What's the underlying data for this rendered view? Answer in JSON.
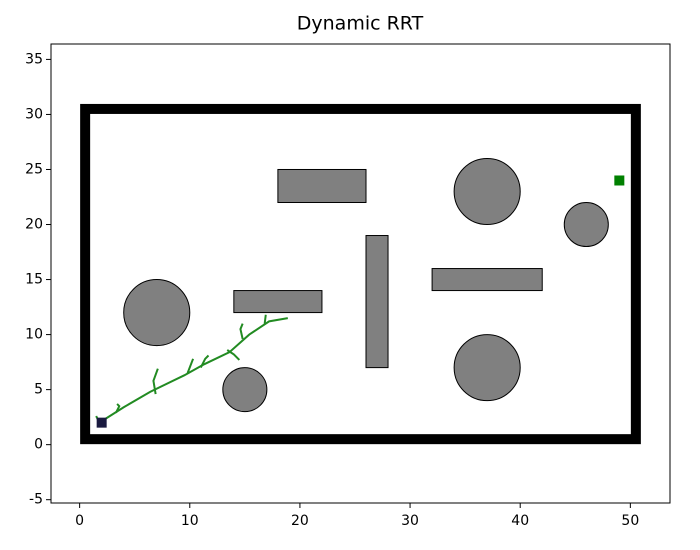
{
  "chart_data": {
    "type": "rrt-map",
    "title": "Dynamic RRT",
    "xlim": [
      -2.6,
      53.6
    ],
    "ylim": [
      -5.3,
      36.4
    ],
    "xticks": [
      0,
      10,
      20,
      30,
      40,
      50
    ],
    "yticks": [
      -5,
      0,
      5,
      10,
      15,
      20,
      25,
      30,
      35
    ],
    "walls": {
      "x": 0.5,
      "y": 0.5,
      "width": 50,
      "height": 30,
      "color": "#000000"
    },
    "obstacle_color": "#808080",
    "rectangles": [
      {
        "x": 18,
        "y": 22,
        "width": 8,
        "height": 3
      },
      {
        "x": 14,
        "y": 12,
        "width": 8,
        "height": 2
      },
      {
        "x": 26,
        "y": 7,
        "width": 2,
        "height": 12
      },
      {
        "x": 32,
        "y": 14,
        "width": 10,
        "height": 2
      }
    ],
    "circles": [
      {
        "x": 7,
        "y": 12,
        "r": 3
      },
      {
        "x": 15,
        "y": 5,
        "r": 2
      },
      {
        "x": 37,
        "y": 23,
        "r": 3
      },
      {
        "x": 37,
        "y": 7,
        "r": 3
      },
      {
        "x": 46,
        "y": 20,
        "r": 2
      }
    ],
    "tree_color": "#228b22",
    "tree": [
      {
        "x": [
          1.8,
          4,
          6.4,
          9.5,
          11.3,
          13.6,
          15.4,
          17.2,
          18.9
        ],
        "y": [
          2,
          3.4,
          4.8,
          6.3,
          7.3,
          8.4,
          10,
          11.2,
          11.5
        ]
      },
      {
        "x": [
          6.9,
          6.7,
          7.1
        ],
        "y": [
          4.6,
          5.8,
          6.9
        ]
      },
      {
        "x": [
          11,
          11.4,
          11.7
        ],
        "y": [
          7,
          7.8,
          8.1
        ]
      },
      {
        "x": [
          13.4,
          14,
          14.5
        ],
        "y": [
          8.6,
          8.2,
          7.7
        ]
      },
      {
        "x": [
          14.8,
          14.6,
          14.8
        ],
        "y": [
          9.6,
          10.5,
          11
        ]
      },
      {
        "x": [
          16.8,
          16.9
        ],
        "y": [
          11,
          11.8
        ]
      },
      {
        "x": [
          3.3,
          3.6,
          3.4
        ],
        "y": [
          2.9,
          3.5,
          3.7
        ]
      },
      {
        "x": [
          1.5,
          1.8
        ],
        "y": [
          2.6,
          2
        ]
      },
      {
        "x": [
          9.8,
          10.3
        ],
        "y": [
          6.5,
          7.8
        ]
      }
    ],
    "start": {
      "x": 2,
      "y": 2,
      "color": "#1a1a40"
    },
    "goal": {
      "x": 49,
      "y": 24,
      "color": "#008000"
    }
  }
}
